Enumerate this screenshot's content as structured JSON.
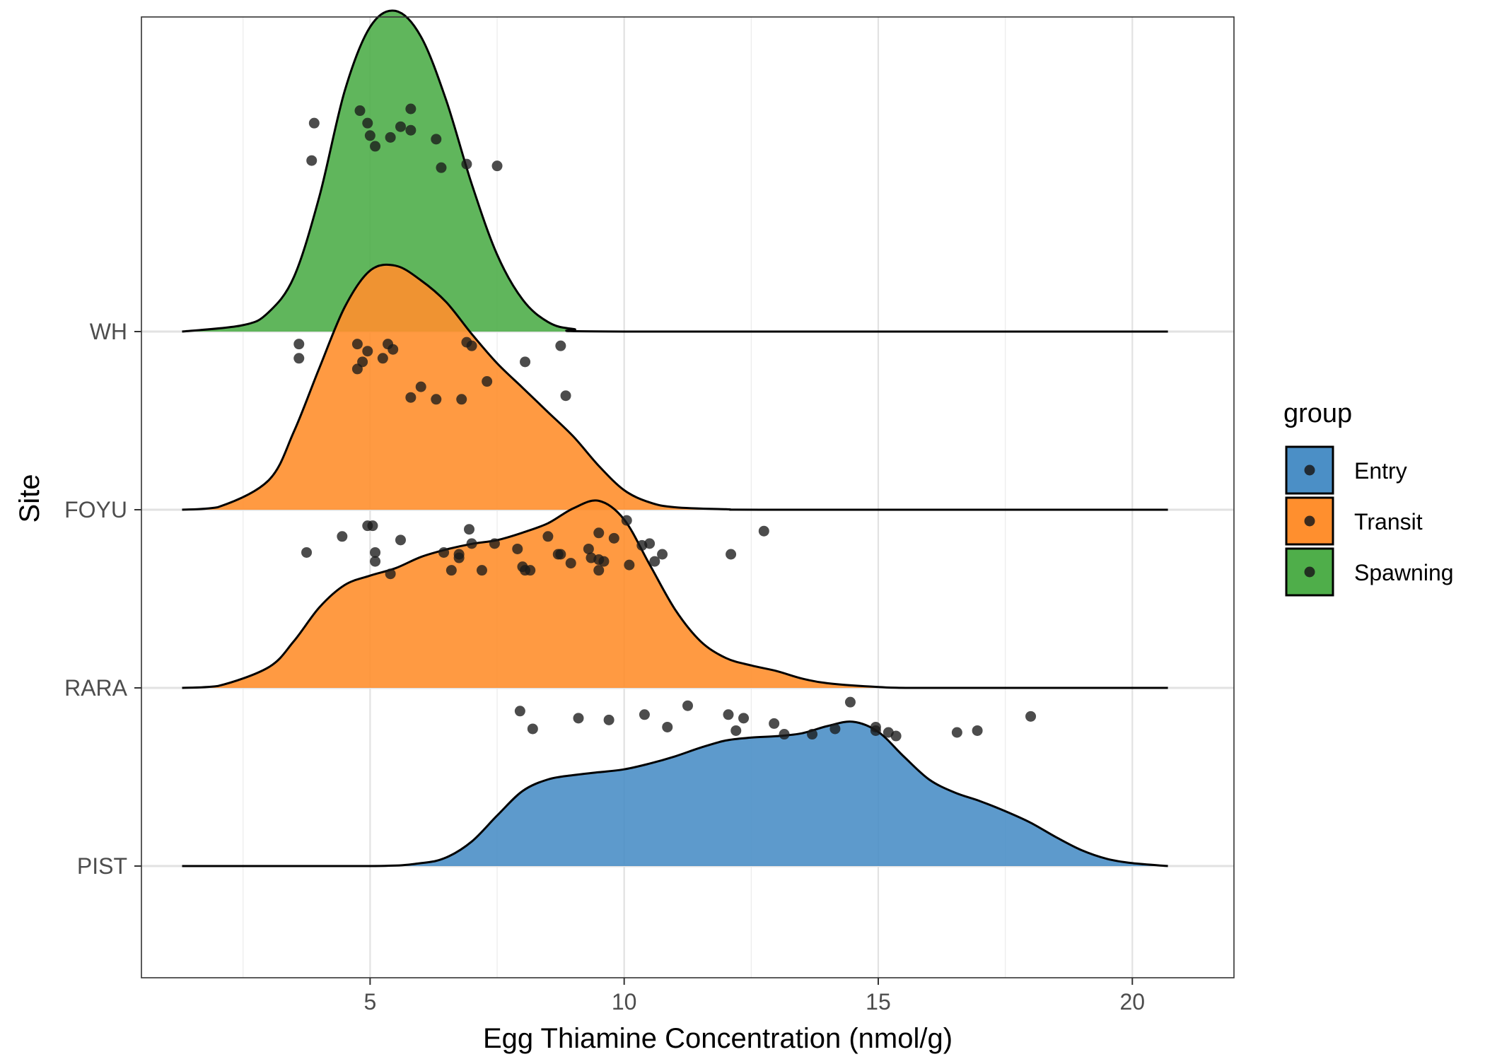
{
  "chart_data": {
    "type": "ridgeline",
    "xlabel": "Egg Thiamine Concentration (nmol/g)",
    "ylabel": "Site",
    "xlim": [
      0.5,
      22.0
    ],
    "x_ticks": [
      5,
      10,
      15,
      20
    ],
    "x_tick_labels": [
      "5",
      "10",
      "15",
      "20"
    ],
    "categories": [
      "PIST",
      "RARA",
      "FOYU",
      "WH"
    ],
    "grid": true,
    "legend": {
      "title": "group",
      "position": "right",
      "items": [
        {
          "label": "Entry",
          "color": "#4b8fc6"
        },
        {
          "label": "Transit",
          "color": "#ff8f2e"
        },
        {
          "label": "Spawning",
          "color": "#4fae4a"
        }
      ]
    },
    "series": [
      {
        "site": "WH",
        "group": "Spawning",
        "color": "#4fae4a",
        "peak_height": 1.8,
        "density_x": [
          1.3,
          2.5,
          3.0,
          3.5,
          4.0,
          4.5,
          5.0,
          5.5,
          6.0,
          6.5,
          7.0,
          7.5,
          8.0,
          8.5,
          9.0,
          10.0,
          20.7
        ],
        "density_y": [
          0.0,
          0.02,
          0.06,
          0.17,
          0.42,
          0.75,
          0.95,
          1.0,
          0.92,
          0.72,
          0.46,
          0.24,
          0.1,
          0.03,
          0.008,
          0.0,
          0.0
        ],
        "points": []
      },
      {
        "site": "FOYU",
        "group": "Transit",
        "color": "#ff8f2e",
        "peak_height": 1.37,
        "density_x": [
          1.3,
          2.0,
          3.0,
          3.5,
          4.0,
          4.5,
          5.0,
          5.5,
          6.0,
          6.5,
          7.0,
          7.5,
          8.0,
          8.5,
          9.0,
          9.5,
          10.0,
          10.5,
          11.0,
          12.0,
          13.0,
          20.7
        ],
        "density_y": [
          0.0,
          0.01,
          0.12,
          0.32,
          0.58,
          0.83,
          0.98,
          1.0,
          0.94,
          0.85,
          0.72,
          0.6,
          0.5,
          0.4,
          0.3,
          0.18,
          0.08,
          0.03,
          0.01,
          0.002,
          0.0,
          0.0
        ],
        "points": [
          {
            "x": 3.9,
            "y": 5.17
          },
          {
            "x": 4.8,
            "y": 5.24
          },
          {
            "x": 5.8,
            "y": 5.25
          },
          {
            "x": 4.95,
            "y": 5.17
          },
          {
            "x": 5.6,
            "y": 5.15
          },
          {
            "x": 5.8,
            "y": 5.13
          },
          {
            "x": 5.0,
            "y": 5.1
          },
          {
            "x": 5.4,
            "y": 5.09
          },
          {
            "x": 6.3,
            "y": 5.08
          },
          {
            "x": 5.1,
            "y": 5.04
          },
          {
            "x": 3.85,
            "y": 4.96
          },
          {
            "x": 6.9,
            "y": 4.94
          },
          {
            "x": 7.5,
            "y": 4.93
          },
          {
            "x": 6.4,
            "y": 4.92
          }
        ]
      },
      {
        "site": "RARA",
        "group": "Transit",
        "color": "#ff8f2e",
        "peak_height": 1.05,
        "density_x": [
          1.3,
          2.0,
          3.0,
          3.5,
          4.0,
          4.5,
          5.0,
          5.5,
          6.0,
          6.5,
          7.0,
          7.5,
          8.0,
          8.5,
          9.0,
          9.5,
          10.0,
          10.5,
          11.0,
          11.5,
          12.0,
          12.5,
          13.0,
          13.5,
          14.0,
          15.0,
          16.0,
          20.7
        ],
        "density_y": [
          0.0,
          0.01,
          0.11,
          0.25,
          0.43,
          0.55,
          0.6,
          0.64,
          0.7,
          0.74,
          0.77,
          0.79,
          0.83,
          0.88,
          0.96,
          1.0,
          0.9,
          0.66,
          0.42,
          0.25,
          0.16,
          0.12,
          0.09,
          0.05,
          0.025,
          0.005,
          0.0,
          0.0
        ],
        "points": [
          {
            "x": 3.6,
            "y": 3.93
          },
          {
            "x": 4.75,
            "y": 3.93
          },
          {
            "x": 5.35,
            "y": 3.93
          },
          {
            "x": 6.9,
            "y": 3.94
          },
          {
            "x": 7.0,
            "y": 3.92
          },
          {
            "x": 8.75,
            "y": 3.92
          },
          {
            "x": 4.95,
            "y": 3.89
          },
          {
            "x": 5.45,
            "y": 3.9
          },
          {
            "x": 3.6,
            "y": 3.85
          },
          {
            "x": 5.25,
            "y": 3.85
          },
          {
            "x": 4.85,
            "y": 3.83
          },
          {
            "x": 8.05,
            "y": 3.83
          },
          {
            "x": 4.75,
            "y": 3.79
          },
          {
            "x": 7.3,
            "y": 3.72
          },
          {
            "x": 6.0,
            "y": 3.69
          },
          {
            "x": 8.85,
            "y": 3.64
          },
          {
            "x": 5.8,
            "y": 3.63
          },
          {
            "x": 6.3,
            "y": 3.62
          },
          {
            "x": 6.8,
            "y": 3.62
          }
        ]
      },
      {
        "site": "PIST",
        "group": "Entry",
        "color": "#4b8fc6",
        "peak_height": 0.81,
        "density_x": [
          1.3,
          5.0,
          6.0,
          6.5,
          7.0,
          7.5,
          8.0,
          8.5,
          9.0,
          9.5,
          10.0,
          10.5,
          11.0,
          11.5,
          12.0,
          12.5,
          13.0,
          13.5,
          14.0,
          14.5,
          15.0,
          15.5,
          16.0,
          16.5,
          17.0,
          17.5,
          18.0,
          18.5,
          19.0,
          19.5,
          20.0,
          20.7
        ],
        "density_y": [
          0.0,
          0.0,
          0.02,
          0.06,
          0.17,
          0.35,
          0.52,
          0.6,
          0.63,
          0.65,
          0.67,
          0.71,
          0.76,
          0.82,
          0.87,
          0.89,
          0.9,
          0.92,
          0.97,
          1.0,
          0.93,
          0.76,
          0.6,
          0.51,
          0.45,
          0.38,
          0.3,
          0.2,
          0.11,
          0.05,
          0.02,
          0.0
        ],
        "points": [
          {
            "x": 10.05,
            "y": 2.94
          },
          {
            "x": 12.75,
            "y": 2.88
          },
          {
            "x": 4.95,
            "y": 2.91
          },
          {
            "x": 5.05,
            "y": 2.91
          },
          {
            "x": 6.95,
            "y": 2.89
          },
          {
            "x": 4.45,
            "y": 2.85
          },
          {
            "x": 8.5,
            "y": 2.85
          },
          {
            "x": 9.5,
            "y": 2.87
          },
          {
            "x": 9.8,
            "y": 2.84
          },
          {
            "x": 5.6,
            "y": 2.83
          },
          {
            "x": 7.0,
            "y": 2.81
          },
          {
            "x": 7.45,
            "y": 2.81
          },
          {
            "x": 10.35,
            "y": 2.8
          },
          {
            "x": 10.5,
            "y": 2.81
          },
          {
            "x": 7.9,
            "y": 2.78
          },
          {
            "x": 9.3,
            "y": 2.78
          },
          {
            "x": 3.75,
            "y": 2.76
          },
          {
            "x": 5.1,
            "y": 2.76
          },
          {
            "x": 6.45,
            "y": 2.76
          },
          {
            "x": 6.75,
            "y": 2.75
          },
          {
            "x": 8.7,
            "y": 2.75
          },
          {
            "x": 8.75,
            "y": 2.75
          },
          {
            "x": 10.75,
            "y": 2.75
          },
          {
            "x": 12.1,
            "y": 2.75
          },
          {
            "x": 6.75,
            "y": 2.73
          },
          {
            "x": 9.35,
            "y": 2.73
          },
          {
            "x": 9.5,
            "y": 2.72
          },
          {
            "x": 9.6,
            "y": 2.71
          },
          {
            "x": 5.1,
            "y": 2.71
          },
          {
            "x": 10.6,
            "y": 2.71
          },
          {
            "x": 8.95,
            "y": 2.7
          },
          {
            "x": 10.1,
            "y": 2.69
          },
          {
            "x": 8.0,
            "y": 2.68
          },
          {
            "x": 6.6,
            "y": 2.66
          },
          {
            "x": 7.2,
            "y": 2.66
          },
          {
            "x": 8.05,
            "y": 2.66
          },
          {
            "x": 8.15,
            "y": 2.66
          },
          {
            "x": 9.5,
            "y": 2.66
          },
          {
            "x": 5.4,
            "y": 2.64
          },
          {
            "x": 14.45,
            "y": 1.92
          },
          {
            "x": 11.25,
            "y": 1.9
          },
          {
            "x": 7.95,
            "y": 1.87
          },
          {
            "x": 10.4,
            "y": 1.85
          },
          {
            "x": 12.05,
            "y": 1.85
          },
          {
            "x": 9.1,
            "y": 1.83
          },
          {
            "x": 12.35,
            "y": 1.83
          },
          {
            "x": 9.7,
            "y": 1.82
          },
          {
            "x": 18.0,
            "y": 1.84
          },
          {
            "x": 12.95,
            "y": 1.8
          },
          {
            "x": 10.85,
            "y": 1.78
          },
          {
            "x": 8.2,
            "y": 1.77
          },
          {
            "x": 14.95,
            "y": 1.78
          },
          {
            "x": 14.15,
            "y": 1.77
          },
          {
            "x": 14.95,
            "y": 1.76
          },
          {
            "x": 16.95,
            "y": 1.76
          },
          {
            "x": 12.2,
            "y": 1.76
          },
          {
            "x": 15.2,
            "y": 1.75
          },
          {
            "x": 16.55,
            "y": 1.75
          },
          {
            "x": 13.15,
            "y": 1.74
          },
          {
            "x": 13.7,
            "y": 1.74
          },
          {
            "x": 15.35,
            "y": 1.73
          }
        ]
      }
    ]
  }
}
